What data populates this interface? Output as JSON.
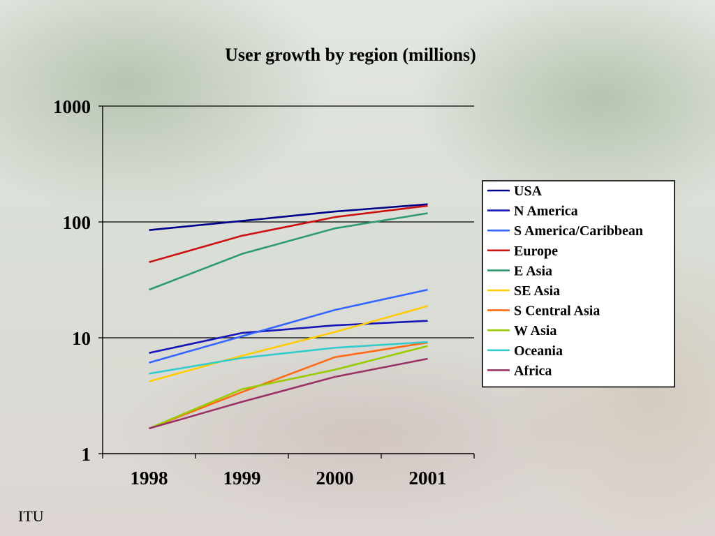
{
  "slide": {
    "source_label": "ITU"
  },
  "chart_data": {
    "type": "line",
    "title": "User growth by region (millions)",
    "xlabel": "",
    "ylabel": "",
    "x": [
      "1998",
      "1999",
      "2000",
      "2001"
    ],
    "y_scale": "log",
    "ylim": [
      1,
      1000
    ],
    "y_ticks": [
      1,
      10,
      100,
      1000
    ],
    "y_tick_labels": [
      "1",
      "10",
      "100",
      "1000"
    ],
    "grid": true,
    "legend_position": "right",
    "series": [
      {
        "name": "USA",
        "color": "#00008B",
        "values": [
          85,
          102,
          123,
          142
        ]
      },
      {
        "name": "N America",
        "color": "#1515B8",
        "values": [
          7.4,
          11,
          12.8,
          14
        ]
      },
      {
        "name": "S America/Caribbean",
        "color": "#3366FF",
        "values": [
          6.1,
          10.3,
          17.4,
          26
        ]
      },
      {
        "name": "Europe",
        "color": "#CC1111",
        "values": [
          45,
          76,
          110,
          138
        ]
      },
      {
        "name": "E Asia",
        "color": "#2E9B6E",
        "values": [
          26,
          53,
          88,
          119
        ]
      },
      {
        "name": "SE Asia",
        "color": "#FFCC00",
        "values": [
          4.2,
          7,
          11.2,
          18.8
        ]
      },
      {
        "name": "S Central Asia",
        "color": "#FF6A13",
        "values": [
          1.65,
          3.4,
          6.8,
          9.1
        ]
      },
      {
        "name": "W Asia",
        "color": "#99CC00",
        "values": [
          1.65,
          3.6,
          5.3,
          8.5
        ]
      },
      {
        "name": "Oceania",
        "color": "#33CCCC",
        "values": [
          4.9,
          6.7,
          8.2,
          9.2
        ]
      },
      {
        "name": "Africa",
        "color": "#993366",
        "values": [
          1.65,
          2.8,
          4.6,
          6.6
        ]
      }
    ]
  }
}
